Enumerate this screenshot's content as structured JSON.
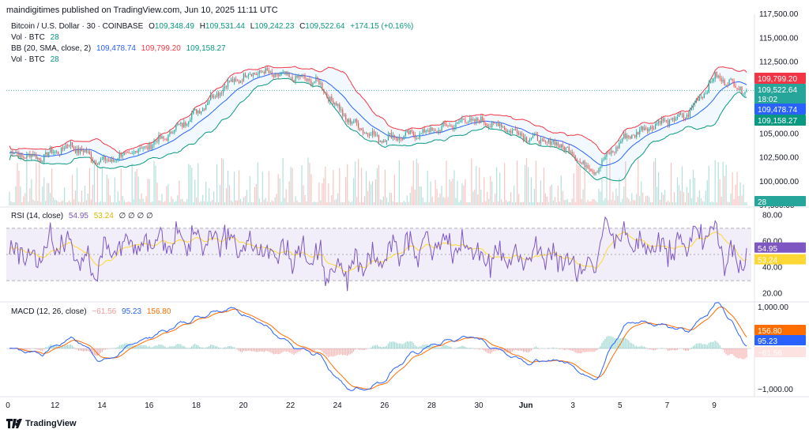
{
  "header": {
    "publisher": "maindigitimes published on TradingView.com, Jun 10, 2025 11:11 UTC"
  },
  "legend": {
    "symbol": "Bitcoin / U.S. Dollar · 30 · COINBASE",
    "ohlc": {
      "o_label": "O",
      "o": "109,348.49",
      "h_label": "H",
      "h": "109,531.44",
      "l_label": "L",
      "l": "109,242.23",
      "c_label": "C",
      "c": "109,522.64",
      "change": "+174.15 (+0.16%)"
    },
    "vol1": {
      "label": "Vol · BTC",
      "value": "28"
    },
    "bb": {
      "label": "BB (20, SMA, close, 2)",
      "basis": "109,478.74",
      "upper": "109,799.20",
      "lower": "109,158.27"
    },
    "vol2": {
      "label": "Vol · BTC",
      "value": "28"
    },
    "rsi": {
      "label": "RSI (14, close)",
      "v1": "54.95",
      "v2": "53.24",
      "na": "∅ ∅ ∅ ∅"
    },
    "macd": {
      "label": "MACD (12, 26, close)",
      "hist": "−61.56",
      "macd": "95.23",
      "signal": "156.80"
    }
  },
  "price_axis": {
    "ticks": [
      "117,500.00",
      "115,000.00",
      "112,500.00",
      "105,000.00",
      "102,500.00",
      "100,000.00",
      "97,500.00"
    ]
  },
  "price_tags": {
    "upper": "109,799.20",
    "close": "109,522.64",
    "countdown": "18:02",
    "basis": "109,478.74",
    "lower": "109,158.27",
    "volume": "28"
  },
  "rsi_axis": {
    "ticks": [
      "80.00",
      "60.00",
      "40.00",
      "20.00"
    ]
  },
  "rsi_tags": {
    "rsi": "54.95",
    "ma": "53.24"
  },
  "macd_axis": {
    "ticks": [
      "1,000.00",
      "−1,000.00"
    ]
  },
  "macd_tags": {
    "signal": "156.80",
    "macd": "95.23",
    "hist": "−61.56"
  },
  "time_axis": [
    "0",
    "12",
    "14",
    "16",
    "18",
    "20",
    "22",
    "24",
    "26",
    "28",
    "30",
    "Jun",
    "3",
    "5",
    "7",
    "9"
  ],
  "footer": {
    "brand": "TradingView"
  },
  "colors": {
    "up": "#26a69a",
    "down": "#ef5350",
    "bb_upper": "#f23645",
    "bb_basis": "#2962ff",
    "bb_lower": "#089981",
    "rsi": "#7e57c2",
    "rsi_ma": "#fdd835",
    "macd": "#2962ff",
    "signal": "#ff6d00"
  },
  "chart_data": [
    {
      "type": "candlestick",
      "title": "Bitcoin / U.S. Dollar · 30 · COINBASE",
      "ylim": [
        97500,
        117500
      ],
      "x": [
        "0",
        "12",
        "14",
        "16",
        "18",
        "20",
        "22",
        "24",
        "26",
        "28",
        "30",
        "Jun",
        "3",
        "5",
        "7",
        "9"
      ],
      "close_approx": [
        103000,
        102500,
        103800,
        102000,
        103000,
        104500,
        107000,
        110000,
        111500,
        111000,
        110500,
        106500,
        104500,
        104800,
        105500,
        106500,
        105800,
        104500,
        103800,
        101000,
        104500,
        106000,
        106800,
        111000,
        109522.64
      ],
      "bollinger": {
        "upper": 109799.2,
        "basis": 109478.74,
        "lower": 109158.27
      }
    },
    {
      "type": "line",
      "title": "RSI (14, close)",
      "ylim": [
        15,
        85
      ],
      "bands": [
        70,
        30
      ],
      "series": [
        {
          "name": "RSI",
          "last": 54.95
        },
        {
          "name": "RSI MA",
          "last": 53.24
        }
      ]
    },
    {
      "type": "line",
      "title": "MACD (12, 26, close)",
      "ylim": [
        -1100,
        1100
      ],
      "series": [
        {
          "name": "MACD",
          "last": 95.23
        },
        {
          "name": "Signal",
          "last": 156.8
        },
        {
          "name": "Histogram",
          "last": -61.56
        }
      ]
    }
  ]
}
